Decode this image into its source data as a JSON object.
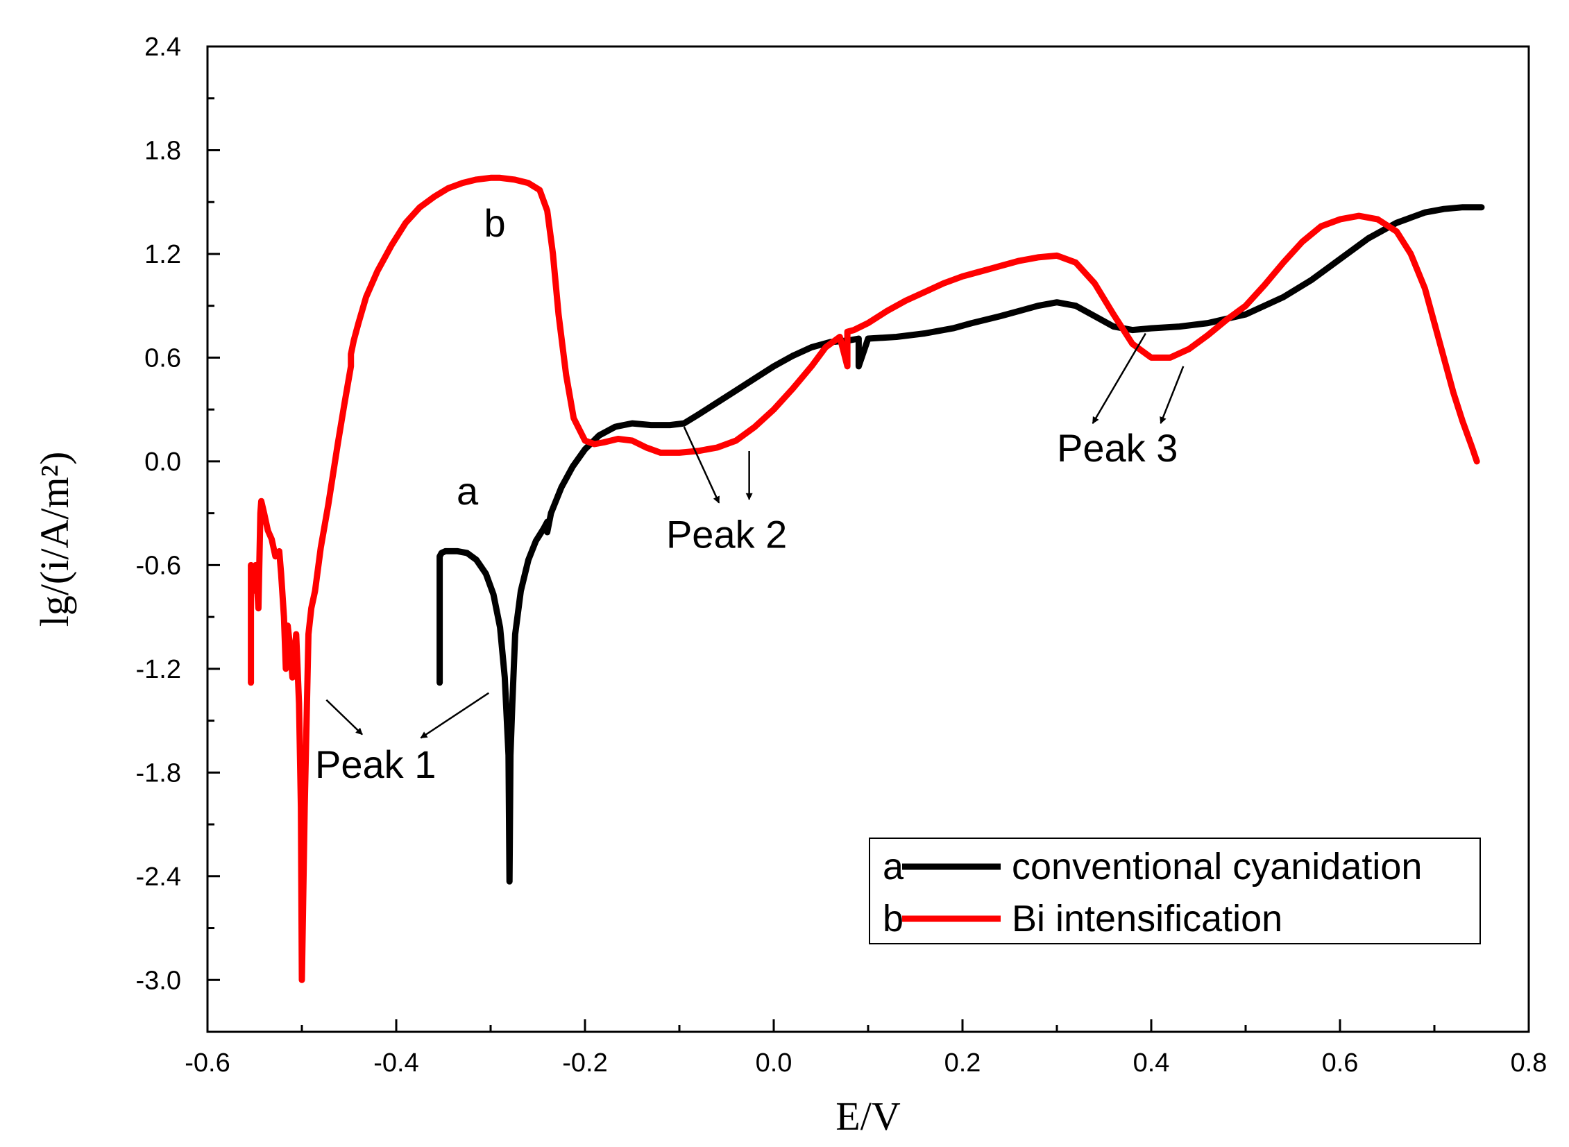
{
  "chart_data": {
    "type": "line",
    "title": "",
    "xlabel": "E/V",
    "ylabel": "lg/(i/A/m²)",
    "xlim": [
      -0.6,
      0.8
    ],
    "ylim": [
      -3.3,
      2.4
    ],
    "x_ticks": [
      -0.6,
      -0.4,
      -0.2,
      0.0,
      0.2,
      0.4,
      0.6,
      0.8
    ],
    "x_tick_labels": [
      "-0.6",
      "-0.4",
      "-0.2",
      "0.0",
      "0.2",
      "0.4",
      "0.6",
      "0.8"
    ],
    "y_ticks": [
      -3.0,
      -2.4,
      -1.8,
      -1.2,
      -0.6,
      0.0,
      0.6,
      1.2,
      1.8,
      2.4
    ],
    "y_tick_labels": [
      "-3.0",
      "-2.4",
      "-1.8",
      "-1.2",
      "-0.6",
      "0.0",
      "0.6",
      "1.2",
      "1.8",
      "2.4"
    ],
    "grid": false,
    "legend_position": "bottom-right",
    "series": [
      {
        "name": "conventional cyanidation",
        "key": "a",
        "color": "#000000",
        "x": [
          -0.354,
          -0.354,
          -0.352,
          -0.348,
          -0.342,
          -0.335,
          -0.325,
          -0.315,
          -0.305,
          -0.297,
          -0.29,
          -0.285,
          -0.281,
          -0.28,
          -0.279,
          -0.277,
          -0.274,
          -0.268,
          -0.26,
          -0.252,
          -0.244,
          -0.24,
          -0.24,
          -0.236,
          -0.225,
          -0.213,
          -0.2,
          -0.185,
          -0.168,
          -0.15,
          -0.13,
          -0.11,
          -0.095,
          -0.08,
          -0.06,
          -0.04,
          -0.02,
          0.0,
          0.02,
          0.04,
          0.06,
          0.08,
          0.09,
          0.09,
          0.1,
          0.13,
          0.16,
          0.19,
          0.21,
          0.24,
          0.26,
          0.28,
          0.3,
          0.32,
          0.34,
          0.36,
          0.38,
          0.4,
          0.43,
          0.46,
          0.5,
          0.54,
          0.57,
          0.6,
          0.63,
          0.66,
          0.69,
          0.71,
          0.73,
          0.75
        ],
        "y": [
          -1.28,
          -0.55,
          -0.53,
          -0.52,
          -0.52,
          -0.52,
          -0.53,
          -0.57,
          -0.65,
          -0.77,
          -0.96,
          -1.25,
          -1.7,
          -2.43,
          -1.7,
          -1.4,
          -1.0,
          -0.75,
          -0.57,
          -0.46,
          -0.39,
          -0.35,
          -0.41,
          -0.3,
          -0.15,
          -0.03,
          0.07,
          0.15,
          0.2,
          0.22,
          0.21,
          0.21,
          0.22,
          0.27,
          0.34,
          0.41,
          0.48,
          0.55,
          0.61,
          0.66,
          0.69,
          0.7,
          0.71,
          0.55,
          0.71,
          0.72,
          0.74,
          0.77,
          0.8,
          0.84,
          0.87,
          0.9,
          0.92,
          0.9,
          0.84,
          0.78,
          0.76,
          0.77,
          0.78,
          0.8,
          0.85,
          0.95,
          1.05,
          1.17,
          1.29,
          1.38,
          1.44,
          1.46,
          1.47,
          1.47
        ]
      },
      {
        "name": "Bi intensification",
        "key": "b",
        "color": "#ff0000",
        "x": [
          -0.554,
          -0.554,
          -0.552,
          -0.549,
          -0.546,
          -0.544,
          -0.543,
          -0.54,
          -0.536,
          -0.532,
          -0.528,
          -0.524,
          -0.522,
          -0.519,
          -0.517,
          -0.515,
          -0.512,
          -0.51,
          -0.506,
          -0.503,
          -0.501,
          -0.5,
          -0.497,
          -0.495,
          -0.493,
          -0.49,
          -0.486,
          -0.48,
          -0.472,
          -0.462,
          -0.455,
          -0.448,
          -0.448,
          -0.445,
          -0.44,
          -0.432,
          -0.42,
          -0.405,
          -0.39,
          -0.375,
          -0.36,
          -0.345,
          -0.33,
          -0.315,
          -0.3,
          -0.29,
          -0.275,
          -0.26,
          -0.248,
          -0.24,
          -0.234,
          -0.228,
          -0.22,
          -0.212,
          -0.2,
          -0.19,
          -0.18,
          -0.165,
          -0.15,
          -0.135,
          -0.12,
          -0.1,
          -0.08,
          -0.06,
          -0.04,
          -0.02,
          0.0,
          0.02,
          0.04,
          0.055,
          0.07,
          0.078,
          0.078,
          0.085,
          0.1,
          0.12,
          0.14,
          0.16,
          0.18,
          0.2,
          0.22,
          0.24,
          0.26,
          0.28,
          0.3,
          0.32,
          0.34,
          0.36,
          0.38,
          0.4,
          0.42,
          0.44,
          0.46,
          0.48,
          0.5,
          0.52,
          0.54,
          0.56,
          0.58,
          0.6,
          0.62,
          0.64,
          0.66,
          0.675,
          0.69,
          0.7,
          0.71,
          0.72,
          0.73,
          0.74,
          0.745
        ],
        "y": [
          -1.28,
          -0.6,
          -0.75,
          -0.6,
          -0.85,
          -0.3,
          -0.23,
          -0.3,
          -0.4,
          -0.45,
          -0.55,
          -0.52,
          -0.65,
          -0.9,
          -1.2,
          -0.95,
          -1.1,
          -1.25,
          -1.0,
          -1.4,
          -2.0,
          -3.0,
          -2.0,
          -1.5,
          -1.0,
          -0.85,
          -0.75,
          -0.5,
          -0.25,
          0.1,
          0.33,
          0.55,
          0.62,
          0.7,
          0.8,
          0.95,
          1.1,
          1.25,
          1.38,
          1.47,
          1.53,
          1.58,
          1.61,
          1.63,
          1.64,
          1.64,
          1.63,
          1.61,
          1.57,
          1.45,
          1.2,
          0.85,
          0.5,
          0.25,
          0.12,
          0.1,
          0.11,
          0.13,
          0.12,
          0.08,
          0.05,
          0.05,
          0.06,
          0.08,
          0.12,
          0.2,
          0.3,
          0.42,
          0.55,
          0.66,
          0.72,
          0.55,
          0.75,
          0.76,
          0.8,
          0.87,
          0.93,
          0.98,
          1.03,
          1.07,
          1.1,
          1.13,
          1.16,
          1.18,
          1.19,
          1.15,
          1.03,
          0.85,
          0.68,
          0.6,
          0.6,
          0.65,
          0.73,
          0.82,
          0.9,
          1.02,
          1.15,
          1.27,
          1.36,
          1.4,
          1.42,
          1.4,
          1.33,
          1.2,
          1.0,
          0.8,
          0.6,
          0.4,
          0.23,
          0.08,
          0.0
        ]
      }
    ],
    "annotations": [
      {
        "text": "a",
        "x": -0.336,
        "y": -0.25
      },
      {
        "text": "b",
        "x": -0.307,
        "y": 1.3
      },
      {
        "text": "Peak 1",
        "x": -0.486,
        "y": -1.83
      },
      {
        "text": "Peak 2",
        "x": -0.114,
        "y": -0.5
      },
      {
        "text": "Peak 3",
        "x": 0.3,
        "y": -0.0
      }
    ],
    "arrows": [
      {
        "from": [
          -0.474,
          -1.38
        ],
        "to": [
          -0.436,
          -1.58
        ]
      },
      {
        "from": [
          -0.302,
          -1.34
        ],
        "to": [
          -0.374,
          -1.6
        ]
      },
      {
        "from": [
          -0.095,
          0.2
        ],
        "to": [
          -0.058,
          -0.24
        ]
      },
      {
        "from": [
          -0.026,
          0.06
        ],
        "to": [
          -0.026,
          -0.22
        ]
      },
      {
        "from": [
          0.394,
          0.74
        ],
        "to": [
          0.338,
          0.22
        ]
      },
      {
        "from": [
          0.434,
          0.55
        ],
        "to": [
          0.41,
          0.22
        ]
      }
    ]
  },
  "legend": {
    "items": [
      {
        "key": "a",
        "label": "conventional cyanidation"
      },
      {
        "key": "b",
        "label": "Bi intensification"
      }
    ]
  }
}
